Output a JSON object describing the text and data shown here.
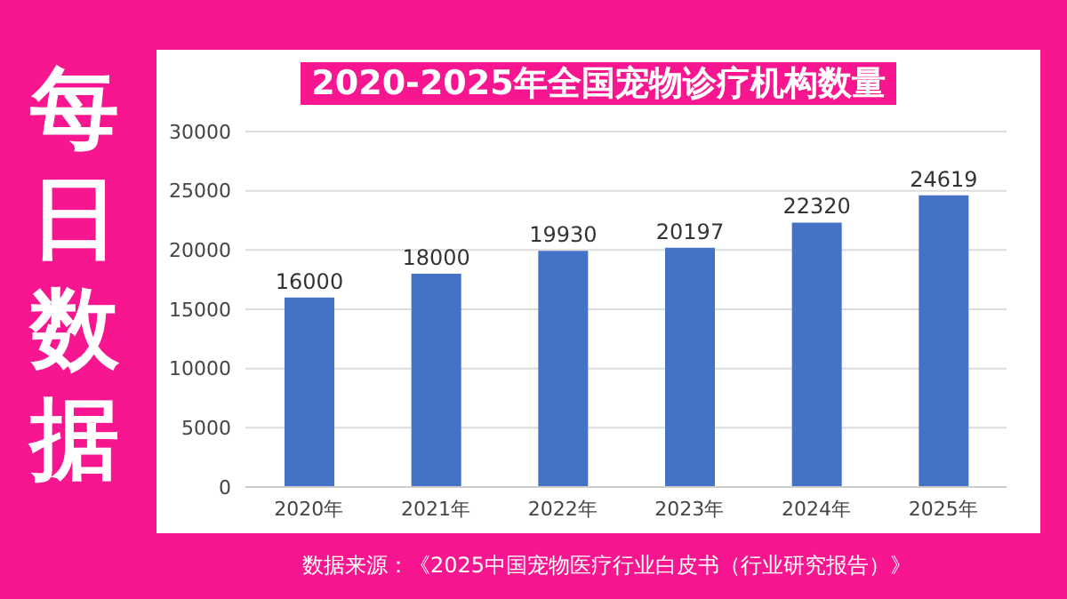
{
  "chart_data": {
    "type": "bar",
    "title": "2020-2025年全国宠物诊疗机构数量",
    "annotations": [
      "每日数据",
      "数据来源：《2025中国宠物医疗行业白皮书（行业研究报告）》"
    ],
    "categories": [
      "2020年",
      "2021年",
      "2022年",
      "2023年",
      "2024年",
      "2025年"
    ],
    "values": [
      16000,
      18000,
      19930,
      20197,
      22320,
      24619
    ],
    "color": "#4472c4",
    "ylim": [
      0,
      30000
    ],
    "yticks": [
      0,
      5000,
      10000,
      15000,
      20000,
      25000,
      30000
    ],
    "grid": "y",
    "data_labels": true
  }
}
